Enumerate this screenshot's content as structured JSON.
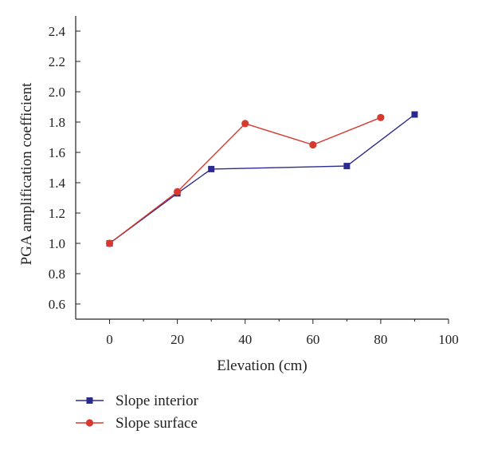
{
  "chart_data": {
    "type": "line",
    "xlabel": "Elevation (cm)",
    "ylabel": "PGA amplification coefficient",
    "xlim": [
      -10,
      100
    ],
    "ylim": [
      0.5,
      2.5
    ],
    "xticks": [
      0,
      20,
      40,
      60,
      80,
      100
    ],
    "yticks": [
      0.6,
      0.8,
      1.0,
      1.2,
      1.4,
      1.6,
      1.8,
      2.0,
      2.2,
      2.4
    ],
    "x_tick_labels": [
      "0",
      "20",
      "40",
      "60",
      "80",
      "100"
    ],
    "y_tick_labels": [
      "0.6",
      "0.8",
      "1.0",
      "1.2",
      "1.4",
      "1.6",
      "1.8",
      "2.0",
      "2.2",
      "2.4"
    ],
    "grid": false,
    "legend_position": "bottom-left",
    "series": [
      {
        "name": "Slope interior",
        "color": "#2b2b8f",
        "marker": "square",
        "x": [
          0,
          20,
          30,
          70,
          90
        ],
        "y": [
          1.0,
          1.33,
          1.49,
          1.51,
          1.85
        ]
      },
      {
        "name": "Slope surface",
        "color": "#d63a2f",
        "marker": "circle",
        "x": [
          0,
          20,
          40,
          60,
          80
        ],
        "y": [
          1.0,
          1.34,
          1.79,
          1.65,
          1.83
        ]
      }
    ]
  }
}
